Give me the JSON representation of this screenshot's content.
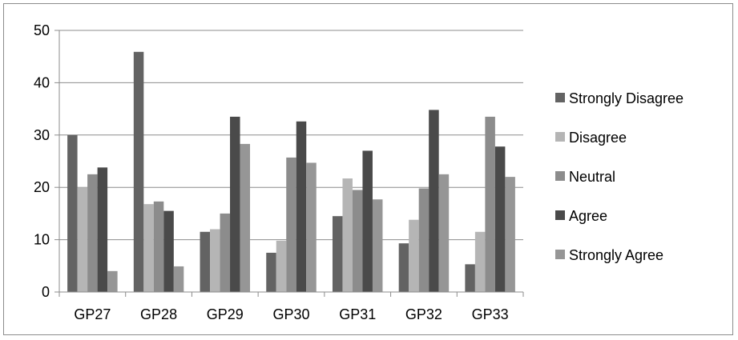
{
  "chart_data": {
    "type": "bar",
    "categories": [
      "GP27",
      "GP28",
      "GP29",
      "GP30",
      "GP31",
      "GP32",
      "GP33"
    ],
    "series": [
      {
        "name": "Strongly Disagree",
        "color": "#636363",
        "values": [
          30,
          45.9,
          11.5,
          7.5,
          14.5,
          9.3,
          5.3
        ]
      },
      {
        "name": "Disagree",
        "color": "#b5b5b5",
        "values": [
          20,
          16.8,
          12,
          9.8,
          21.7,
          13.8,
          11.5
        ]
      },
      {
        "name": "Neutral",
        "color": "#8c8c8c",
        "values": [
          22.5,
          17.3,
          15,
          25.7,
          19.5,
          19.8,
          33.5
        ]
      },
      {
        "name": "Agree",
        "color": "#4a4a4a",
        "values": [
          23.8,
          15.5,
          33.5,
          32.6,
          27,
          34.8,
          27.8
        ]
      },
      {
        "name": "Strongly Agree",
        "color": "#969696",
        "values": [
          4,
          4.9,
          28.3,
          24.7,
          17.7,
          22.5,
          22
        ]
      }
    ],
    "yticks": [
      0,
      10,
      20,
      30,
      40,
      50
    ],
    "ylim": [
      0,
      50
    ],
    "grid": true,
    "legend_position": "right"
  }
}
